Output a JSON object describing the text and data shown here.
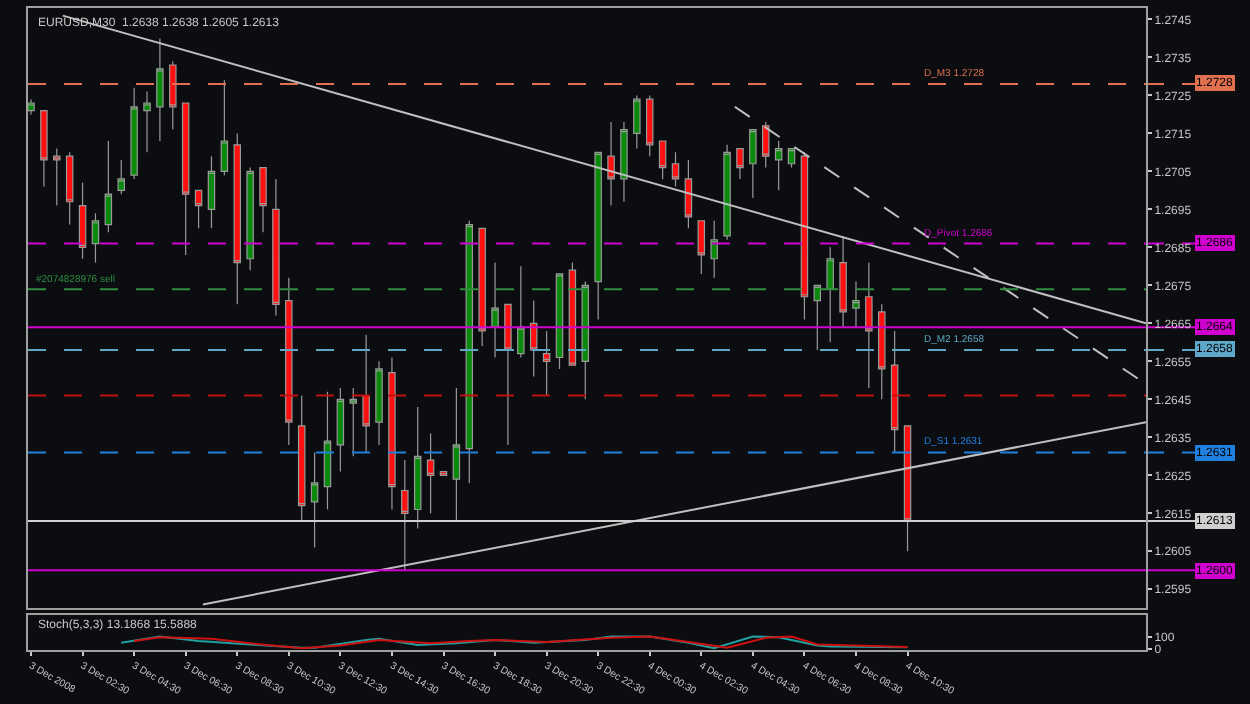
{
  "chart_data": [
    {
      "type": "candlestick",
      "title": "EURUSD,M30  1.2638 1.2638 1.2605 1.2613",
      "x": [
        "2008-12-03T00:30",
        "2008-12-03T01:00",
        "2008-12-03T01:30",
        "2008-12-03T02:00",
        "2008-12-03T02:30",
        "2008-12-03T03:00",
        "2008-12-03T03:30",
        "2008-12-03T04:00",
        "2008-12-03T04:30",
        "2008-12-03T05:00",
        "2008-12-03T05:30",
        "2008-12-03T06:00",
        "2008-12-03T06:30",
        "2008-12-03T07:00",
        "2008-12-03T07:30",
        "2008-12-03T08:00",
        "2008-12-03T08:30",
        "2008-12-03T09:00",
        "2008-12-03T09:30",
        "2008-12-03T10:00",
        "2008-12-03T10:30",
        "2008-12-03T11:00",
        "2008-12-03T11:30",
        "2008-12-03T12:00",
        "2008-12-03T12:30",
        "2008-12-03T13:00",
        "2008-12-03T13:30",
        "2008-12-03T14:00",
        "2008-12-03T14:30",
        "2008-12-03T15:00",
        "2008-12-03T15:30",
        "2008-12-03T16:00",
        "2008-12-03T16:30",
        "2008-12-03T17:00",
        "2008-12-03T17:30",
        "2008-12-03T18:00",
        "2008-12-03T18:30",
        "2008-12-03T19:00",
        "2008-12-03T19:30",
        "2008-12-03T20:00",
        "2008-12-03T20:30",
        "2008-12-03T21:00",
        "2008-12-03T21:30",
        "2008-12-03T22:00",
        "2008-12-03T22:30",
        "2008-12-03T23:00",
        "2008-12-03T23:30",
        "2008-12-04T00:00",
        "2008-12-04T00:30",
        "2008-12-04T01:00",
        "2008-12-04T01:30",
        "2008-12-04T02:00",
        "2008-12-04T02:30",
        "2008-12-04T03:00",
        "2008-12-04T03:30",
        "2008-12-04T04:00",
        "2008-12-04T04:30",
        "2008-12-04T05:00",
        "2008-12-04T05:30",
        "2008-12-04T06:00",
        "2008-12-04T06:30",
        "2008-12-04T07:00",
        "2008-12-04T07:30",
        "2008-12-04T08:00",
        "2008-12-04T08:30",
        "2008-12-04T09:00",
        "2008-12-04T09:30",
        "2008-12-04T10:00",
        "2008-12-04T10:30"
      ],
      "ohlc": [
        [
          1.2721,
          1.2724,
          1.272,
          1.2723
        ],
        [
          1.2721,
          1.2721,
          1.2701,
          1.2708
        ],
        [
          1.2709,
          1.2711,
          1.2696,
          1.2708
        ],
        [
          1.2709,
          1.271,
          1.2691,
          1.2697
        ],
        [
          1.2696,
          1.2702,
          1.2682,
          1.2685
        ],
        [
          1.2686,
          1.2694,
          1.2681,
          1.2692
        ],
        [
          1.2691,
          1.2713,
          1.2689,
          1.2699
        ],
        [
          1.27,
          1.2708,
          1.2699,
          1.2703
        ],
        [
          1.2704,
          1.2727,
          1.2703,
          1.2722
        ],
        [
          1.2721,
          1.2726,
          1.271,
          1.2723
        ],
        [
          1.2722,
          1.274,
          1.2713,
          1.2732
        ],
        [
          1.2733,
          1.2734,
          1.2716,
          1.2722
        ],
        [
          1.2723,
          1.2723,
          1.2683,
          1.2699
        ],
        [
          1.27,
          1.27,
          1.269,
          1.2696
        ],
        [
          1.2695,
          1.2709,
          1.269,
          1.2705
        ],
        [
          1.2705,
          1.2729,
          1.2704,
          1.2713
        ],
        [
          1.2712,
          1.2715,
          1.267,
          1.2681
        ],
        [
          1.2682,
          1.2706,
          1.2679,
          1.2705
        ],
        [
          1.2706,
          1.2706,
          1.2689,
          1.2696
        ],
        [
          1.2695,
          1.2703,
          1.2667,
          1.267
        ],
        [
          1.2671,
          1.2677,
          1.2633,
          1.2639
        ],
        [
          1.2638,
          1.2646,
          1.2613,
          1.2617
        ],
        [
          1.2618,
          1.2631,
          1.2606,
          1.2623
        ],
        [
          1.2622,
          1.2647,
          1.2616,
          1.2634
        ],
        [
          1.2633,
          1.2648,
          1.2626,
          1.2645
        ],
        [
          1.2644,
          1.2648,
          1.263,
          1.2645
        ],
        [
          1.2646,
          1.2662,
          1.2631,
          1.2638
        ],
        [
          1.2639,
          1.2655,
          1.2633,
          1.2653
        ],
        [
          1.2652,
          1.2656,
          1.2616,
          1.2622
        ],
        [
          1.2621,
          1.2629,
          1.26,
          1.2615
        ],
        [
          1.2616,
          1.2643,
          1.2611,
          1.263
        ],
        [
          1.2629,
          1.2636,
          1.2615,
          1.2625
        ],
        [
          1.2626,
          1.2626,
          1.2625,
          1.2625
        ],
        [
          1.2624,
          1.2648,
          1.2613,
          1.2633
        ],
        [
          1.2632,
          1.2692,
          1.2623,
          1.2691
        ],
        [
          1.269,
          1.269,
          1.2659,
          1.2663
        ],
        [
          1.2664,
          1.2681,
          1.2656,
          1.2669
        ],
        [
          1.267,
          1.267,
          1.2633,
          1.2658
        ],
        [
          1.2657,
          1.268,
          1.2656,
          1.2664
        ],
        [
          1.2665,
          1.2671,
          1.2651,
          1.2658
        ],
        [
          1.2657,
          1.2663,
          1.2646,
          1.2655
        ],
        [
          1.2656,
          1.2678,
          1.2653,
          1.2678
        ],
        [
          1.2679,
          1.2681,
          1.2654,
          1.2654
        ],
        [
          1.2655,
          1.2676,
          1.2645,
          1.2675
        ],
        [
          1.2676,
          1.271,
          1.2666,
          1.271
        ],
        [
          1.2709,
          1.2718,
          1.2696,
          1.2703
        ],
        [
          1.2703,
          1.2718,
          1.2697,
          1.2716
        ],
        [
          1.2715,
          1.2725,
          1.2711,
          1.2724
        ],
        [
          1.2724,
          1.2725,
          1.2709,
          1.2712
        ],
        [
          1.2713,
          1.2713,
          1.2703,
          1.2706
        ],
        [
          1.2707,
          1.271,
          1.2701,
          1.2703
        ],
        [
          1.2703,
          1.2708,
          1.269,
          1.2693
        ],
        [
          1.2692,
          1.2692,
          1.2678,
          1.2683
        ],
        [
          1.2682,
          1.2692,
          1.2677,
          1.2687
        ],
        [
          1.2688,
          1.2712,
          1.2687,
          1.271
        ],
        [
          1.2711,
          1.2711,
          1.2703,
          1.2706
        ],
        [
          1.2707,
          1.2716,
          1.2698,
          1.2716
        ],
        [
          1.2717,
          1.2718,
          1.2706,
          1.2709
        ],
        [
          1.2708,
          1.2713,
          1.27,
          1.2711
        ],
        [
          1.2707,
          1.2711,
          1.2706,
          1.2711
        ],
        [
          1.2709,
          1.271,
          1.2666,
          1.2672
        ],
        [
          1.2671,
          1.2675,
          1.2658,
          1.2675
        ],
        [
          1.2674,
          1.2685,
          1.266,
          1.2682
        ],
        [
          1.2681,
          1.2688,
          1.2664,
          1.2668
        ],
        [
          1.2669,
          1.2676,
          1.2664,
          1.2671
        ],
        [
          1.2672,
          1.2681,
          1.2648,
          1.2663
        ],
        [
          1.2668,
          1.267,
          1.2645,
          1.2653
        ],
        [
          1.2654,
          1.2663,
          1.2631,
          1.2637
        ],
        [
          1.2638,
          1.2638,
          1.2605,
          1.2613
        ]
      ],
      "series": [
        {
          "type": "line",
          "color": "#c0c0c0",
          "x": [
            "2008-12-03T01:44",
            "2008-12-04T19:45"
          ],
          "values": [
            1.2746,
            1.2665
          ]
        },
        {
          "type": "line",
          "color": "#c0c0c0",
          "x": [
            "2008-12-03T07:10",
            "2008-12-04T19:45"
          ],
          "values": [
            1.2591,
            1.2639
          ]
        },
        {
          "type": "line",
          "color": "#c0c0c0",
          "line_style": "dashed",
          "x": [
            "2008-12-04T03:48",
            "2008-12-04T19:45"
          ],
          "values": [
            1.2722,
            1.2649
          ]
        }
      ],
      "xlim": [
        "2008-12-03T00:23",
        "2008-12-04T19:45"
      ],
      "ylim": [
        1.259,
        1.2748
      ],
      "yticks": [
        1.2595,
        1.2605,
        1.2615,
        1.2625,
        1.2635,
        1.2645,
        1.2655,
        1.2665,
        1.2675,
        1.2685,
        1.2695,
        1.2705,
        1.2715,
        1.2725,
        1.2735,
        1.2745
      ],
      "ref_lines": [
        {
          "axis": "y",
          "value": 1.2728,
          "label": "1.2728",
          "color": "#e07050",
          "line_style": "dashed"
        },
        {
          "axis": "y",
          "value": 1.2686,
          "label": "1.2686",
          "color": "#d000d0",
          "line_style": "dashed"
        },
        {
          "axis": "y",
          "value": 1.2674,
          "color": "#2f8f3f",
          "line_style": "dashed"
        },
        {
          "axis": "y",
          "value": 1.2664,
          "label": "1.2664",
          "color": "#d000d0",
          "line_style": "solid"
        },
        {
          "axis": "y",
          "value": 1.2658,
          "label": "1.2658",
          "color": "#60a8c8",
          "line_style": "dashed"
        },
        {
          "axis": "y",
          "value": 1.2646,
          "color": "#c01010",
          "line_style": "dashed"
        },
        {
          "axis": "y",
          "value": 1.2631,
          "label": "1.2631",
          "color": "#2080e0",
          "line_style": "dashed"
        },
        {
          "axis": "y",
          "value": 1.2613,
          "label": "1.2613",
          "color": "#d0d0d0",
          "line_style": "solid"
        },
        {
          "axis": "y",
          "value": 1.26,
          "label": "1.2600",
          "color": "#d000d0",
          "line_style": "solid"
        }
      ],
      "annotations": [
        {
          "text": "D_M3 1.2728",
          "x": "2008-12-04T11:00",
          "y": 1.2728
        },
        {
          "text": "D_Pivot 1.2686",
          "x": "2008-12-04T11:00",
          "y": 1.2686
        },
        {
          "text": "#2074828976 sell",
          "x": "2008-12-03T00:30",
          "y": 1.2674
        },
        {
          "text": "D_M2 1.2658",
          "x": "2008-12-04T11:00",
          "y": 1.2658
        },
        {
          "text": "D_S1 1.2631",
          "x": "2008-12-04T11:00",
          "y": 1.2631
        }
      ],
      "tick_labels": "y",
      "grid": false
    },
    {
      "type": "line",
      "title": "Stoch(5,3,3) 13.1868 15.5888",
      "series": [
        {
          "color": "#20a0a0",
          "x": [
            "2008-12-03T04:00",
            "2008-12-03T05:30",
            "2008-12-03T07:00",
            "2008-12-03T09:00",
            "2008-12-03T11:00",
            "2008-12-03T11:30",
            "2008-12-03T13:30",
            "2008-12-03T14:00",
            "2008-12-03T15:30",
            "2008-12-03T17:00",
            "2008-12-03T18:30",
            "2008-12-03T20:00",
            "2008-12-03T22:00",
            "2008-12-03T23:00",
            "2008-12-04T00:30",
            "2008-12-04T02:00",
            "2008-12-04T03:00",
            "2008-12-04T04:30",
            "2008-12-04T05:30",
            "2008-12-04T07:00",
            "2008-12-04T07:30",
            "2008-12-04T10:30"
          ],
          "values": [
            50,
            100,
            64,
            36,
            9,
            9,
            73,
            82,
            32,
            45,
            73,
            50,
            73,
            100,
            100,
            50,
            5,
            100,
            95,
            27,
            18,
            13.1868
          ]
        },
        {
          "color": "#d01010",
          "x": [
            "2008-12-03T04:30",
            "2008-12-03T05:30",
            "2008-12-03T07:30",
            "2008-12-03T09:00",
            "2008-12-03T11:00",
            "2008-12-03T12:30",
            "2008-12-03T14:00",
            "2008-12-03T16:00",
            "2008-12-03T17:30",
            "2008-12-03T18:30",
            "2008-12-03T20:30",
            "2008-12-03T23:00",
            "2008-12-04T00:30",
            "2008-12-04T02:00",
            "2008-12-04T03:30",
            "2008-12-04T05:00",
            "2008-12-04T06:00",
            "2008-12-04T07:00",
            "2008-12-04T10:30"
          ],
          "values": [
            64,
            95,
            82,
            45,
            5,
            27,
            73,
            45,
            64,
            73,
            55,
            91,
            100,
            55,
            9,
            91,
            100,
            36,
            15.5888
          ]
        }
      ],
      "xlim": [
        "2008-12-03T00:23",
        "2008-12-04T19:45"
      ],
      "xticks": [
        {
          "value": "2008-12-03T00:30",
          "label": "3 Dec 2008"
        },
        {
          "value": "2008-12-03T02:30",
          "label": "3 Dec 02:30"
        },
        {
          "value": "2008-12-03T04:30",
          "label": "3 Dec 04:30"
        },
        {
          "value": "2008-12-03T06:30",
          "label": "3 Dec 06:30"
        },
        {
          "value": "2008-12-03T08:30",
          "label": "3 Dec 08:30"
        },
        {
          "value": "2008-12-03T10:30",
          "label": "3 Dec 10:30"
        },
        {
          "value": "2008-12-03T12:30",
          "label": "3 Dec 12:30"
        },
        {
          "value": "2008-12-03T14:30",
          "label": "3 Dec 14:30"
        },
        {
          "value": "2008-12-03T16:30",
          "label": "3 Dec 16:30"
        },
        {
          "value": "2008-12-03T18:30",
          "label": "3 Dec 18:30"
        },
        {
          "value": "2008-12-03T20:30",
          "label": "3 Dec 20:30"
        },
        {
          "value": "2008-12-03T22:30",
          "label": "3 Dec 22:30"
        },
        {
          "value": "2008-12-04T00:30",
          "label": "4 Dec 00:30"
        },
        {
          "value": "2008-12-04T02:30",
          "label": "4 Dec 02:30"
        },
        {
          "value": "2008-12-04T04:30",
          "label": "4 Dec 04:30"
        },
        {
          "value": "2008-12-04T06:30",
          "label": "4 Dec 06:30"
        },
        {
          "value": "2008-12-04T08:30",
          "label": "4 Dec 08:30"
        },
        {
          "value": "2008-12-04T10:30",
          "label": "4 Dec 10:30"
        }
      ],
      "ylim": [
        -10,
        280
      ],
      "yticks": [
        0,
        100
      ],
      "grid": false
    }
  ]
}
